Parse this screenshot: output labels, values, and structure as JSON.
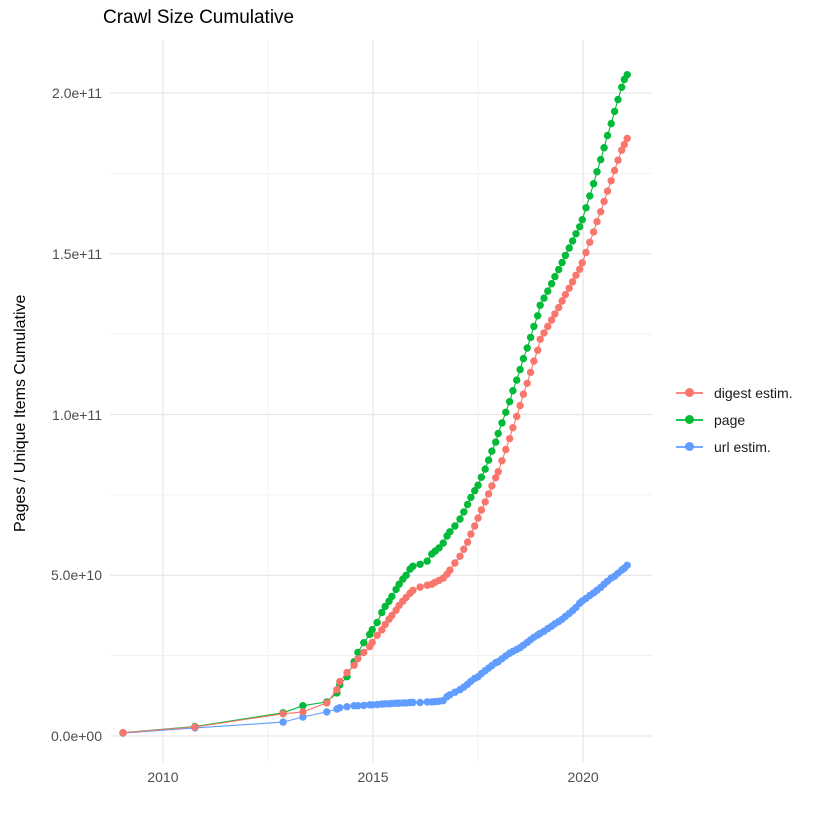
{
  "chart": {
    "title": "Crawl Size Cumulative",
    "y_axis_title": "Pages / Unique Items Cumulative",
    "x_axis_title": ""
  },
  "legend": {
    "items": [
      {
        "label": "digest estim.",
        "color": "#F8766D"
      },
      {
        "label": "page",
        "color": "#00BA38"
      },
      {
        "label": "url estim.",
        "color": "#619CFF"
      }
    ]
  },
  "chart_data": {
    "type": "line",
    "show_points": true,
    "title": "Crawl Size Cumulative",
    "xlabel": "",
    "ylabel": "Pages / Unique Items Cumulative",
    "x_unit": "year (decimal, one point per crawl)",
    "y_unit": "items cumulative, values given in billions (1e9)",
    "x": [
      2009.05,
      2010.76,
      2012.86,
      2013.33,
      2013.9,
      2014.14,
      2014.21,
      2014.38,
      2014.55,
      2014.64,
      2014.78,
      2014.92,
      2014.98,
      2015.1,
      2015.21,
      2015.29,
      2015.38,
      2015.45,
      2015.55,
      2015.62,
      2015.71,
      2015.79,
      2015.88,
      2015.95,
      2016.12,
      2016.29,
      2016.4,
      2016.48,
      2016.57,
      2016.67,
      2016.76,
      2016.83,
      2016.95,
      2017.07,
      2017.16,
      2017.25,
      2017.33,
      2017.42,
      2017.5,
      2017.58,
      2017.67,
      2017.75,
      2017.83,
      2017.92,
      2017.98,
      2018.07,
      2018.16,
      2018.25,
      2018.33,
      2018.42,
      2018.5,
      2018.58,
      2018.67,
      2018.75,
      2018.83,
      2018.92,
      2018.98,
      2019.07,
      2019.16,
      2019.25,
      2019.33,
      2019.42,
      2019.5,
      2019.58,
      2019.67,
      2019.75,
      2019.83,
      2019.92,
      2019.98,
      2020.07,
      2020.16,
      2020.25,
      2020.33,
      2020.42,
      2020.5,
      2020.58,
      2020.67,
      2020.75,
      2020.83,
      2020.92,
      2020.98,
      2021.05
    ],
    "series": [
      {
        "name": "digest estim.",
        "color": "#F8766D",
        "values_e9": [
          1.0,
          2.8,
          6.9,
          7.5,
          10.3,
          14.4,
          16.9,
          19.7,
          22.0,
          24.0,
          26.0,
          27.8,
          29.1,
          31.3,
          33.0,
          34.7,
          36.3,
          37.5,
          39.1,
          40.6,
          41.9,
          43.1,
          44.4,
          45.3,
          46.3,
          46.9,
          47.2,
          47.8,
          48.4,
          49.1,
          50.3,
          51.6,
          53.8,
          55.9,
          58.1,
          60.3,
          62.8,
          65.3,
          67.8,
          70.3,
          72.8,
          75.3,
          77.8,
          80.3,
          82.2,
          85.6,
          89.1,
          92.5,
          95.9,
          99.4,
          102.8,
          106.3,
          109.7,
          113.1,
          116.6,
          120.0,
          123.4,
          125.4,
          127.4,
          129.4,
          131.3,
          133.3,
          135.3,
          137.3,
          139.3,
          141.3,
          143.3,
          145.2,
          147.2,
          150.4,
          153.6,
          156.8,
          160.0,
          163.1,
          166.3,
          169.5,
          172.7,
          175.9,
          179.1,
          182.2,
          184.0,
          185.9
        ]
      },
      {
        "name": "page",
        "color": "#00BA38",
        "values_e9": [
          1.0,
          2.9,
          7.2,
          9.4,
          10.6,
          13.4,
          15.9,
          18.4,
          23.1,
          26.0,
          29.0,
          31.6,
          33.1,
          35.3,
          38.4,
          40.3,
          41.9,
          43.4,
          45.6,
          47.2,
          48.8,
          50.0,
          51.9,
          52.8,
          53.4,
          54.4,
          56.6,
          57.5,
          58.5,
          60.0,
          62.2,
          63.5,
          65.3,
          67.5,
          69.7,
          72.0,
          74.2,
          76.3,
          78.0,
          80.5,
          83.0,
          85.8,
          88.6,
          91.4,
          94.1,
          97.4,
          100.7,
          104.0,
          107.4,
          110.7,
          114.0,
          117.4,
          120.7,
          124.0,
          127.4,
          130.7,
          134.0,
          136.2,
          138.4,
          140.7,
          142.9,
          145.1,
          147.3,
          149.5,
          151.8,
          154.0,
          156.2,
          158.4,
          160.6,
          164.3,
          168.0,
          171.8,
          175.5,
          179.3,
          183.0,
          186.8,
          190.5,
          194.3,
          198.0,
          201.8,
          204.2,
          205.7
        ]
      },
      {
        "name": "url estim.",
        "color": "#619CFF",
        "values_e9": [
          0.9,
          2.5,
          4.3,
          5.9,
          7.5,
          8.4,
          8.8,
          9.1,
          9.4,
          9.4,
          9.5,
          9.7,
          9.7,
          9.8,
          9.9,
          10.0,
          10.0,
          10.1,
          10.2,
          10.2,
          10.3,
          10.3,
          10.4,
          10.4,
          10.4,
          10.6,
          10.6,
          10.7,
          10.8,
          11.0,
          12.2,
          12.8,
          13.6,
          14.4,
          15.2,
          16.1,
          17.0,
          17.9,
          18.4,
          19.4,
          20.3,
          21.1,
          21.9,
          22.8,
          23.1,
          24.0,
          24.9,
          25.7,
          26.3,
          26.9,
          27.5,
          28.2,
          29.1,
          29.9,
          30.7,
          31.4,
          31.9,
          32.6,
          33.4,
          34.1,
          34.9,
          35.6,
          36.3,
          37.2,
          38.1,
          39.0,
          40.0,
          41.3,
          42.0,
          42.8,
          43.7,
          44.5,
          45.3,
          46.2,
          47.2,
          48.1,
          49.1,
          49.7,
          50.6,
          51.6,
          52.2,
          53.1
        ]
      }
    ],
    "draw_order": [
      "url estim.",
      "page",
      "digest estim."
    ],
    "x_ticks": {
      "major": [
        2010,
        2015,
        2020
      ],
      "minor": [
        2012.5,
        2017.5
      ],
      "labels": [
        "2010",
        "2015",
        "2020"
      ]
    },
    "y_ticks": {
      "major_e9": [
        0,
        50,
        100,
        150,
        200
      ],
      "minor_e9": [
        25,
        75,
        125,
        175
      ],
      "labels": [
        "0.0e+00",
        "5.0e+10",
        "1.0e+11",
        "1.5e+11",
        "2.0e+11"
      ]
    },
    "xlim": [
      2008.74,
      2021.64
    ],
    "ylim_e9": [
      -8.1,
      216.5
    ],
    "grid": true,
    "legend_position": "right",
    "colors": {
      "background": "#FFFFFF",
      "grid_major": "#E6E6E6",
      "grid_minor": "#F1F1F1",
      "tick_text": "#4D4D4D",
      "text": "#1A1A1A"
    }
  }
}
